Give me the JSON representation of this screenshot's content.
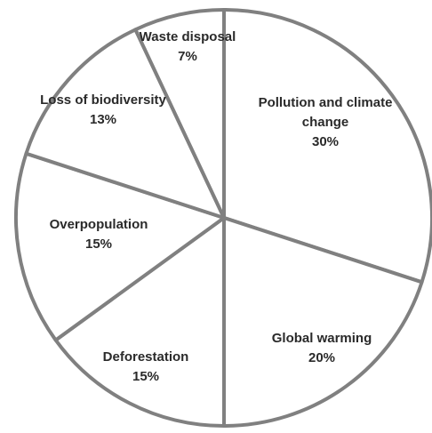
{
  "chart_data": {
    "type": "pie",
    "title": "",
    "slices": [
      {
        "category": "Pollution and climate change",
        "label_lines": [
          "Pollution and climate",
          "change"
        ],
        "value_label": "30%",
        "value": 30
      },
      {
        "category": "Global warming",
        "label_lines": [
          "Global warming"
        ],
        "value_label": "20%",
        "value": 20
      },
      {
        "category": "Deforestation",
        "label_lines": [
          "Deforestation"
        ],
        "value_label": "15%",
        "value": 15
      },
      {
        "category": "Overpopulation",
        "label_lines": [
          "Overpopulation"
        ],
        "value_label": "15%",
        "value": 15
      },
      {
        "category": "Loss of biodiversity",
        "label_lines": [
          "Loss of biodiversity"
        ],
        "value_label": "13%",
        "value": 13
      },
      {
        "category": "Waste disposal",
        "label_lines": [
          "Waste disposal"
        ],
        "value_label": "7%",
        "value": 7
      }
    ],
    "start": "12 o'clock",
    "direction": "clockwise",
    "legend": "none",
    "colors": {
      "fill": "#ffffff",
      "stroke": "#808080",
      "text": "#2a2a2a"
    }
  }
}
